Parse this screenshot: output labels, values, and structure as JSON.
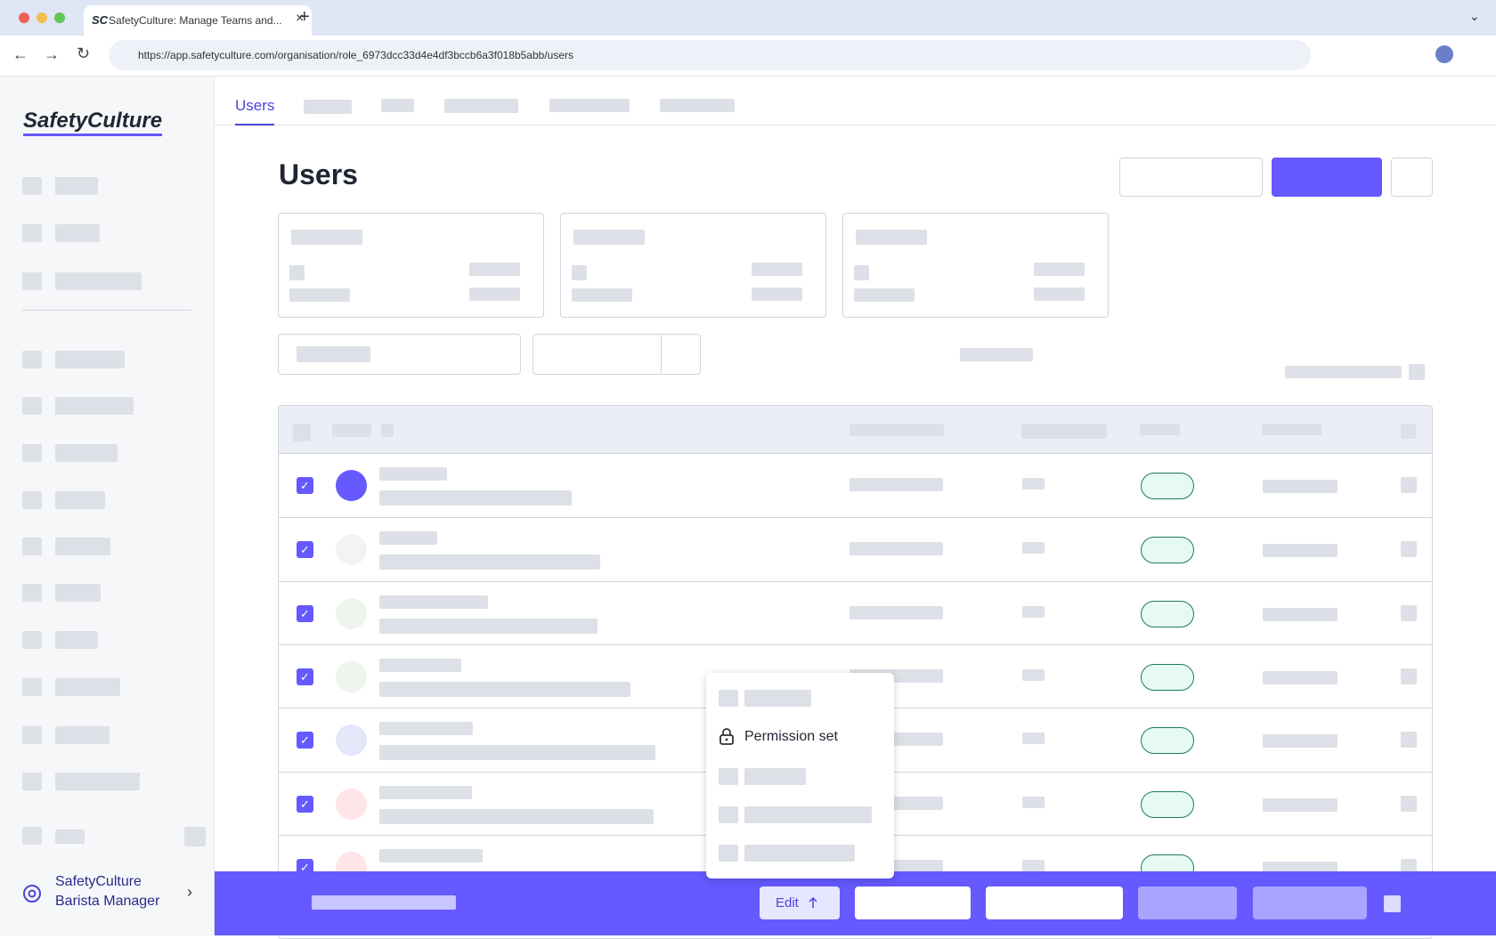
{
  "browser": {
    "favicon": "SC",
    "tab_title": "SafetyCulture: Manage Teams and...",
    "url": "https://app.safetyculture.com/organisation/role_6973dcc33d4e4df3bccb6a3f018b5abb/users"
  },
  "sidebar": {
    "logo": "SafetyCulture",
    "org_name": "SafetyCulture",
    "role": "Barista Manager"
  },
  "tabs": {
    "active": "Users"
  },
  "page": {
    "title": "Users"
  },
  "menu": {
    "item": "Permission set"
  },
  "action_bar": {
    "edit": "Edit"
  }
}
